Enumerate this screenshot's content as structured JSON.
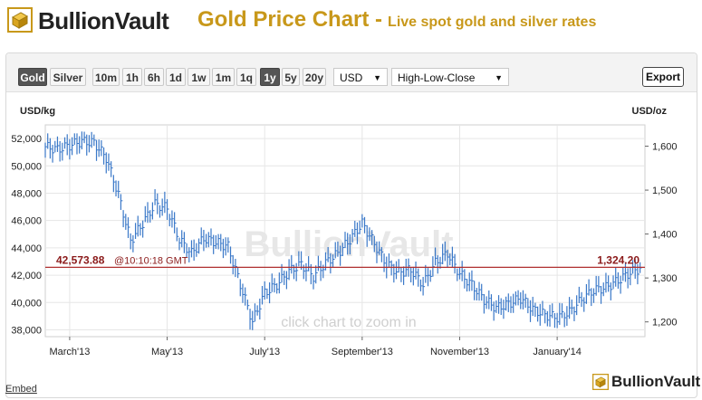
{
  "header": {
    "logo_text": "BullionVault",
    "title": "Gold Price Chart -",
    "subtitle": "Live spot gold and silver rates"
  },
  "toolbar": {
    "metal_buttons": [
      {
        "label": "Gold",
        "selected": true
      },
      {
        "label": "Silver",
        "selected": false
      }
    ],
    "period_buttons": [
      {
        "label": "10m",
        "selected": false
      },
      {
        "label": "1h",
        "selected": false
      },
      {
        "label": "6h",
        "selected": false
      },
      {
        "label": "1d",
        "selected": false
      },
      {
        "label": "1w",
        "selected": false
      },
      {
        "label": "1m",
        "selected": false
      },
      {
        "label": "1q",
        "selected": false
      },
      {
        "label": "1y",
        "selected": true
      },
      {
        "label": "5y",
        "selected": false
      },
      {
        "label": "20y",
        "selected": false
      }
    ],
    "currency": "USD",
    "chart_style": "High-Low-Close",
    "export_label": "Export"
  },
  "footer": {
    "embed_label": "Embed",
    "logo_text": "BullionVault"
  },
  "colors": {
    "accent_gold": "#c8981a",
    "series": "#3a78c8",
    "current_line": "#b03030"
  },
  "chart_data": {
    "type": "line",
    "style": "high-low-close",
    "watermark": "BullionVault",
    "hint": "click chart to zoom in",
    "left_axis": {
      "label": "USD/kg",
      "range": [
        37500,
        53000
      ],
      "ticks": [
        38000,
        40000,
        42000,
        44000,
        46000,
        48000,
        50000,
        52000
      ],
      "tick_labels": [
        "38,000",
        "40,000",
        "42,000",
        "44,000",
        "46,000",
        "48,000",
        "50,000",
        "52,000"
      ]
    },
    "right_axis": {
      "label": "USD/oz",
      "ticks": [
        1200,
        1300,
        1400,
        1500,
        1600
      ],
      "tick_labels": [
        "1,200",
        "1,300",
        "1,400",
        "1,500",
        "1,600"
      ]
    },
    "x_axis": {
      "labels": [
        "March'13",
        "May'13",
        "July'13",
        "September'13",
        "November'13",
        "January'14"
      ],
      "label_positions": [
        0.5,
        2.5,
        4.5,
        6.5,
        8.5,
        10.5
      ]
    },
    "grid": true,
    "current": {
      "kg_label": "42,573.88",
      "time_label": "@10:10:18 GMT",
      "oz_label": "1,324.20",
      "value_kg": 42573.88
    },
    "series": [
      {
        "x": [
          0.0,
          0.25,
          0.5,
          0.75,
          1.0,
          1.25,
          1.5,
          1.75,
          2.0,
          2.25,
          2.5,
          2.75,
          3.0,
          3.25,
          3.5,
          3.75,
          4.0,
          4.25,
          4.5,
          4.75,
          5.0,
          5.25,
          5.5,
          5.75,
          6.0,
          6.25,
          6.5,
          6.75,
          7.0,
          7.25,
          7.5,
          7.75,
          8.0,
          8.25,
          8.5,
          8.75,
          9.0,
          9.25,
          9.5,
          9.75,
          10.0,
          10.25,
          10.5,
          10.75,
          11.0,
          11.25,
          11.5,
          11.75,
          12.0,
          12.25
        ],
        "close": [
          51400,
          51200,
          51500,
          51800,
          51700,
          50600,
          47900,
          44500,
          45800,
          47200,
          46900,
          44600,
          43600,
          44700,
          44400,
          44100,
          41300,
          38600,
          40700,
          41300,
          42300,
          42800,
          41900,
          42900,
          43600,
          44600,
          45800,
          44300,
          42800,
          42200,
          42400,
          41300,
          42900,
          43600,
          42100,
          41300,
          40200,
          39600,
          39900,
          40300,
          39500,
          39100,
          38900,
          39300,
          40200,
          40900,
          41100,
          41600,
          42200,
          42573.88
        ]
      }
    ]
  }
}
